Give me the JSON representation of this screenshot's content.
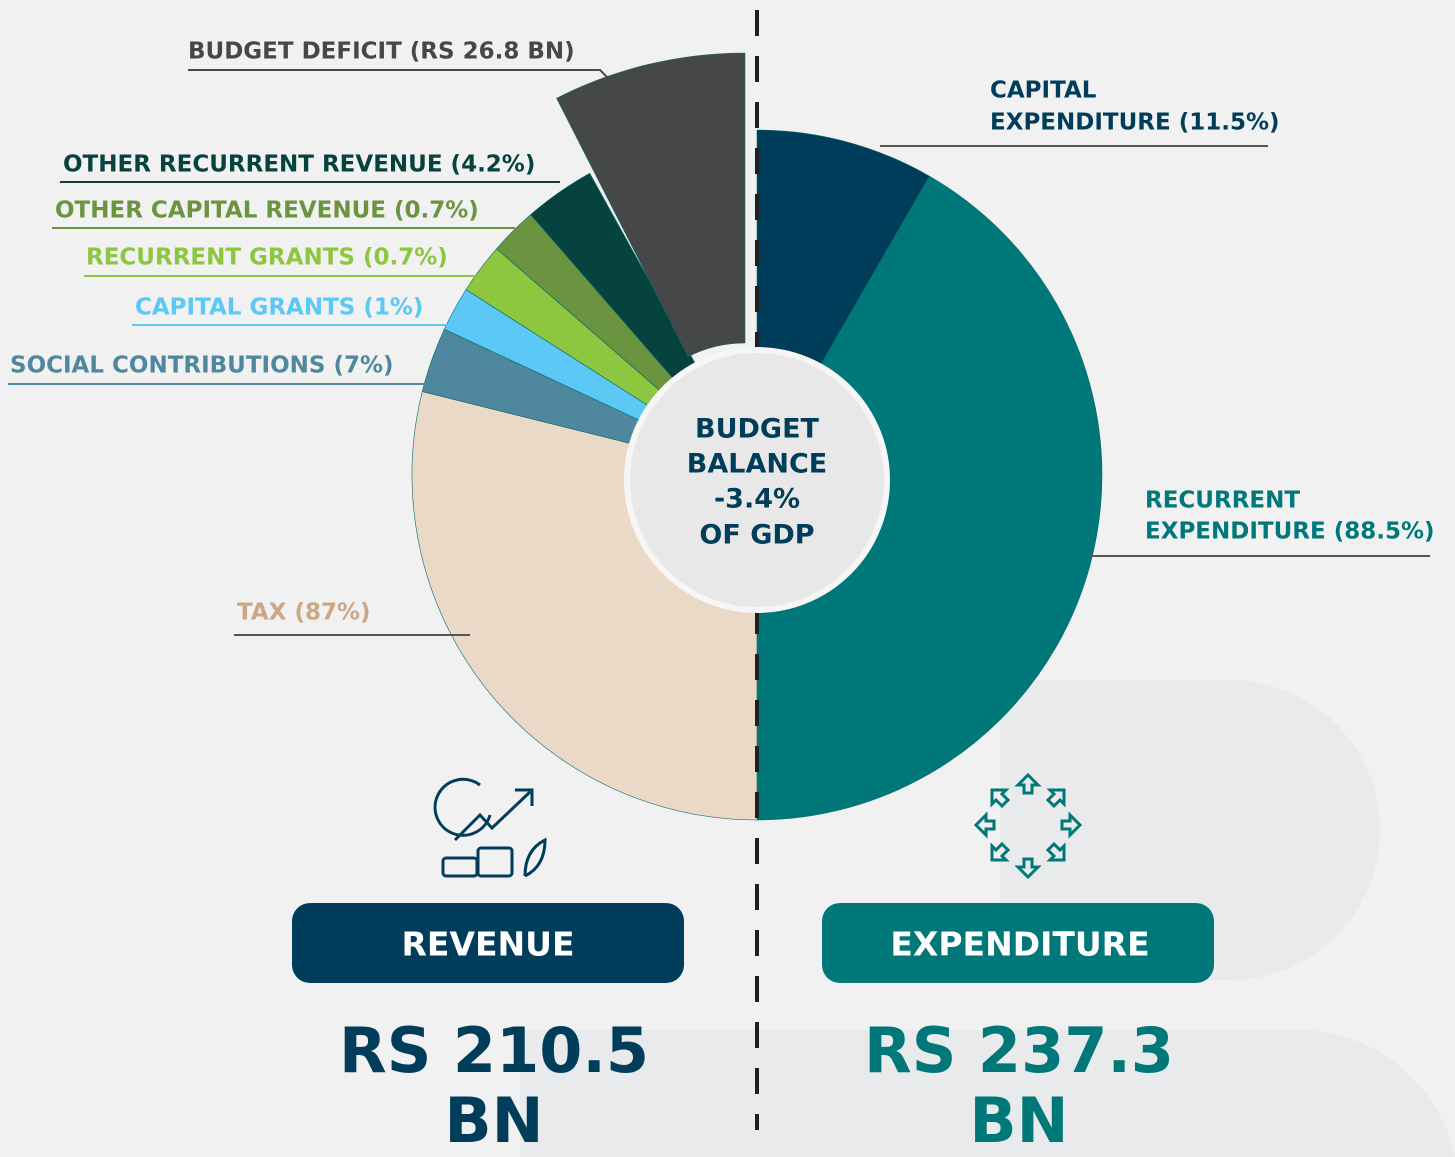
{
  "labels": {
    "budget_deficit": "BUDGET DEFICIT (RS 26.8 BN)",
    "other_recurrent_revenue": "OTHER RECURRENT REVENUE (4.2%)",
    "other_capital_revenue": "OTHER CAPITAL REVENUE (0.7%)",
    "recurrent_grants": "RECURRENT GRANTS (0.7%)",
    "capital_grants": "CAPITAL GRANTS (1%)",
    "social_contributions": "SOCIAL CONTRIBUTIONS (7%)",
    "tax": "TAX (87%)",
    "capital_expenditure": [
      "CAPITAL",
      "EXPENDITURE (11.5%)"
    ],
    "recurrent_expenditure": [
      "RECURRENT",
      "EXPENDITURE (88.5%)"
    ]
  },
  "center": [
    "BUDGET",
    "BALANCE",
    "-3.4%",
    "OF GDP"
  ],
  "revenue": {
    "label": "REVENUE",
    "amount": [
      "RS 210.5",
      "BN"
    ]
  },
  "expenditure": {
    "label": "EXPENDITURE",
    "amount": [
      "RS 237.3",
      "BN"
    ]
  }
}
